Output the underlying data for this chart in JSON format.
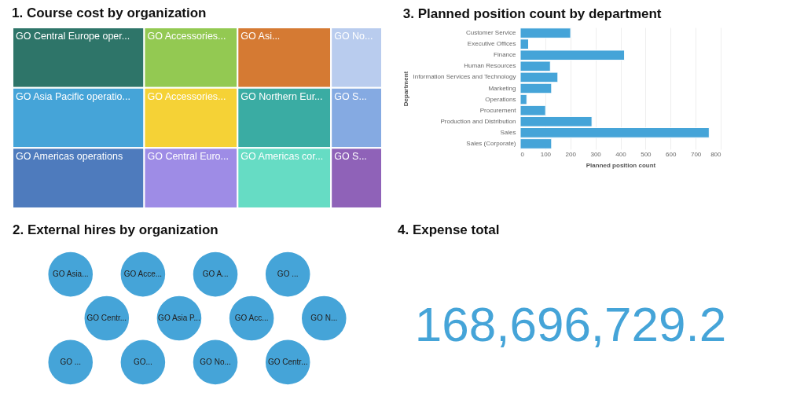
{
  "chart_data": [
    {
      "type": "other",
      "title": "1. Course cost by organization",
      "categories": [
        "GO Central Europe oper...",
        "GO Asia Pacific operatio...",
        "GO Americas operations",
        "GO Accessories...",
        "GO Accessories...",
        "GO Central Euro...",
        "GO Asi...",
        "GO Northern Eur...",
        "GO Americas cor...",
        "GO No...",
        "GO S...",
        "GO S..."
      ],
      "colors": [
        "#2e7569",
        "#45a4d8",
        "#4e7bbd",
        "#93c952",
        "#f5d236",
        "#9e8ce6",
        "#d57a33",
        "#3aaca3",
        "#66dcc4",
        "#b9ccee",
        "#85aae2",
        "#8f62b8"
      ]
    },
    {
      "type": "bar",
      "title": "3. Planned position count by department",
      "orientation": "horizontal",
      "xlabel": "Planned position count",
      "ylabel": "Department",
      "categories": [
        "Customer Service",
        "Executive Offices",
        "Finance",
        "Human Resources",
        "Information Services and Technology",
        "Marketing",
        "Operations",
        "Procurement",
        "Production and Distribution",
        "Sales",
        "Sales (Corporate)"
      ],
      "series": [
        {
          "color": "#45a4d8",
          "values": [
            201,
            33,
            416,
            120,
            150,
            125,
            26,
            101,
            286,
            754,
            125
          ]
        }
      ],
      "xlim": [
        0,
        800
      ],
      "xticks": [
        0,
        100,
        200,
        300,
        400,
        500,
        600,
        700,
        800
      ],
      "grid": "x",
      "legend": false
    },
    {
      "type": "other",
      "title": "2. External hires by organization",
      "color": "#45a4d8",
      "categories": [
        "GO Asia...",
        "GO Acce...",
        "GO A...",
        "GO ...",
        "GO Centr...",
        "GO Asia P...",
        "GO Acc...",
        "GO N...",
        "GO ...",
        "GO...",
        "GO No...",
        "GO Centr..."
      ]
    },
    {
      "type": "other",
      "title": "4. Expense total",
      "color": "#45a4d8",
      "value_labels": [
        "168,696,729.2"
      ]
    }
  ]
}
